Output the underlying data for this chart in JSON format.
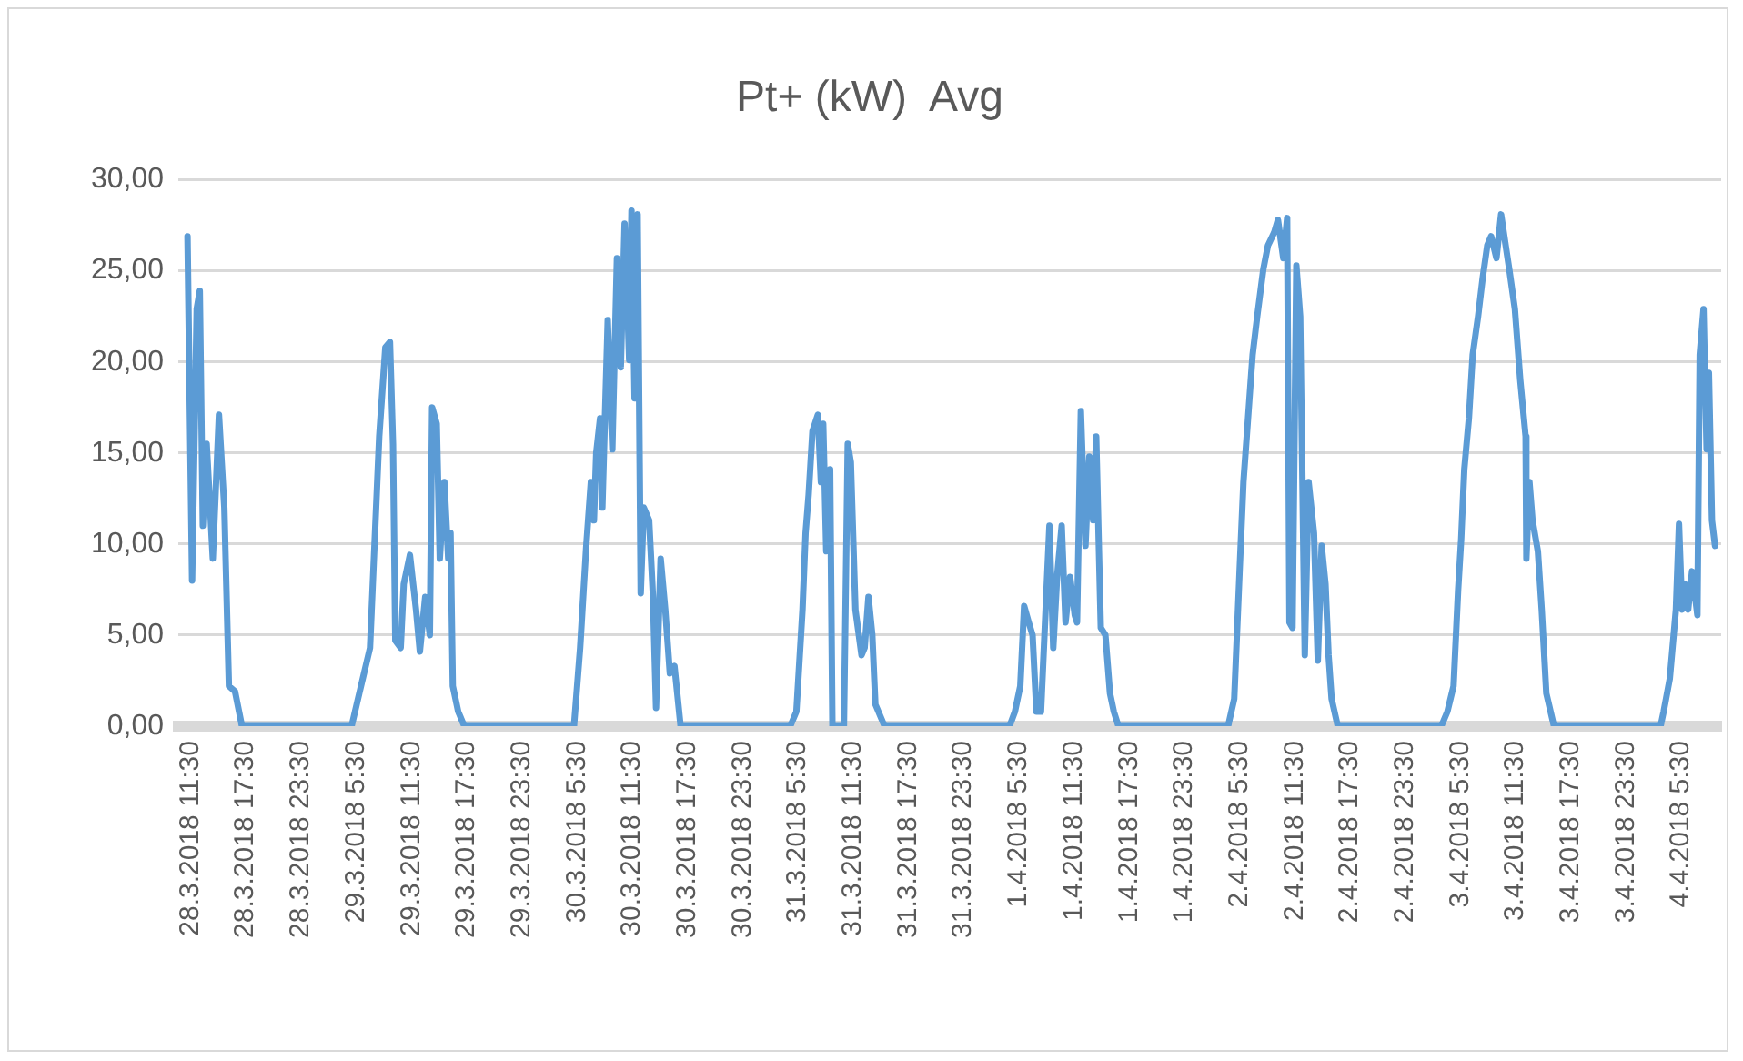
{
  "chart_data": {
    "type": "line",
    "title": "Pt+ (kW)  Avg",
    "xlim": [
      "2018-03-28T10:10",
      "2018-04-04T09:50"
    ],
    "xticks": [
      {
        "value": "2018-03-28T11:30",
        "label": "28.3.2018 11:30"
      },
      {
        "value": "2018-03-28T17:30",
        "label": "28.3.2018 17:30"
      },
      {
        "value": "2018-03-28T23:30",
        "label": "28.3.2018 23:30"
      },
      {
        "value": "2018-03-29T05:30",
        "label": "29.3.2018 5:30"
      },
      {
        "value": "2018-03-29T11:30",
        "label": "29.3.2018 11:30"
      },
      {
        "value": "2018-03-29T17:30",
        "label": "29.3.2018 17:30"
      },
      {
        "value": "2018-03-29T23:30",
        "label": "29.3.2018 23:30"
      },
      {
        "value": "2018-03-30T05:30",
        "label": "30.3.2018 5:30"
      },
      {
        "value": "2018-03-30T11:30",
        "label": "30.3.2018 11:30"
      },
      {
        "value": "2018-03-30T17:30",
        "label": "30.3.2018 17:30"
      },
      {
        "value": "2018-03-30T23:30",
        "label": "30.3.2018 23:30"
      },
      {
        "value": "2018-03-31T05:30",
        "label": "31.3.2018 5:30"
      },
      {
        "value": "2018-03-31T11:30",
        "label": "31.3.2018 11:30"
      },
      {
        "value": "2018-03-31T17:30",
        "label": "31.3.2018 17:30"
      },
      {
        "value": "2018-03-31T23:30",
        "label": "31.3.2018 23:30"
      },
      {
        "value": "2018-04-01T05:30",
        "label": "1.4.2018 5:30"
      },
      {
        "value": "2018-04-01T11:30",
        "label": "1.4.2018 11:30"
      },
      {
        "value": "2018-04-01T17:30",
        "label": "1.4.2018 17:30"
      },
      {
        "value": "2018-04-01T23:30",
        "label": "1.4.2018 23:30"
      },
      {
        "value": "2018-04-02T05:30",
        "label": "2.4.2018 5:30"
      },
      {
        "value": "2018-04-02T11:30",
        "label": "2.4.2018 11:30"
      },
      {
        "value": "2018-04-02T17:30",
        "label": "2.4.2018 17:30"
      },
      {
        "value": "2018-04-02T23:30",
        "label": "2.4.2018 23:30"
      },
      {
        "value": "2018-04-03T05:30",
        "label": "3.4.2018 5:30"
      },
      {
        "value": "2018-04-03T11:30",
        "label": "3.4.2018 11:30"
      },
      {
        "value": "2018-04-03T17:30",
        "label": "3.4.2018 17:30"
      },
      {
        "value": "2018-04-03T23:30",
        "label": "3.4.2018 23:30"
      },
      {
        "value": "2018-04-04T05:30",
        "label": "4.4.2018 5:30"
      }
    ],
    "ylim": [
      0,
      30
    ],
    "yticks": [
      {
        "value": 0,
        "label": "0,00"
      },
      {
        "value": 5,
        "label": "5,00"
      },
      {
        "value": 10,
        "label": "10,00"
      },
      {
        "value": 15,
        "label": "15,00"
      },
      {
        "value": 20,
        "label": "20,00"
      },
      {
        "value": 25,
        "label": "25,00"
      },
      {
        "value": 30,
        "label": "30,00"
      }
    ],
    "grid": "y",
    "legend": false,
    "series": [
      {
        "color": "#5b9bd5",
        "x": [
          "2018-03-28T11:10",
          "2018-03-28T11:40",
          "2018-03-28T12:10",
          "2018-03-28T12:30",
          "2018-03-28T12:50",
          "2018-03-28T13:15",
          "2018-03-28T13:55",
          "2018-03-28T14:35",
          "2018-03-28T15:10",
          "2018-03-28T15:40",
          "2018-03-28T16:20",
          "2018-03-28T17:05",
          "2018-03-29T05:00",
          "2018-03-29T05:50",
          "2018-03-29T07:00",
          "2018-03-29T08:00",
          "2018-03-29T08:40",
          "2018-03-29T09:10",
          "2018-03-29T09:30",
          "2018-03-29T09:45",
          "2018-03-29T10:20",
          "2018-03-29T10:40",
          "2018-03-29T11:20",
          "2018-03-29T12:00",
          "2018-03-29T12:25",
          "2018-03-29T13:00",
          "2018-03-29T13:30",
          "2018-03-29T13:45",
          "2018-03-29T14:15",
          "2018-03-29T14:35",
          "2018-03-29T15:05",
          "2018-03-29T15:30",
          "2018-03-29T15:45",
          "2018-03-29T16:00",
          "2018-03-29T16:35",
          "2018-03-29T17:15",
          "2018-03-30T05:10",
          "2018-03-30T05:50",
          "2018-03-30T06:30",
          "2018-03-30T07:00",
          "2018-03-30T07:20",
          "2018-03-30T07:35",
          "2018-03-30T08:00",
          "2018-03-30T08:15",
          "2018-03-30T08:50",
          "2018-03-30T09:20",
          "2018-03-30T09:50",
          "2018-03-30T10:15",
          "2018-03-30T10:40",
          "2018-03-30T11:10",
          "2018-03-30T11:25",
          "2018-03-30T11:45",
          "2018-03-30T12:05",
          "2018-03-30T12:25",
          "2018-03-30T12:45",
          "2018-03-30T13:20",
          "2018-03-30T13:45",
          "2018-03-30T14:05",
          "2018-03-30T14:35",
          "2018-03-30T15:05",
          "2018-03-30T15:35",
          "2018-03-30T16:05",
          "2018-03-30T16:45",
          "2018-03-31T04:40",
          "2018-03-31T05:20",
          "2018-03-31T06:00",
          "2018-03-31T06:20",
          "2018-03-31T06:40",
          "2018-03-31T07:05",
          "2018-03-31T07:40",
          "2018-03-31T08:00",
          "2018-03-31T08:15",
          "2018-03-31T08:35",
          "2018-03-31T09:00",
          "2018-03-31T09:15",
          "2018-03-31T10:30",
          "2018-03-31T10:55",
          "2018-03-31T11:15",
          "2018-03-31T11:45",
          "2018-03-31T12:25",
          "2018-03-31T12:45",
          "2018-03-31T13:10",
          "2018-03-31T13:35",
          "2018-03-31T13:55",
          "2018-03-31T14:55",
          "2018-04-01T04:30",
          "2018-04-01T05:05",
          "2018-04-01T05:40",
          "2018-04-01T06:05",
          "2018-04-01T06:35",
          "2018-04-01T07:00",
          "2018-04-01T07:25",
          "2018-04-01T07:55",
          "2018-04-01T08:25",
          "2018-04-01T08:50",
          "2018-04-01T09:15",
          "2018-04-01T09:40",
          "2018-04-01T10:10",
          "2018-04-01T10:35",
          "2018-04-01T11:05",
          "2018-04-01T11:35",
          "2018-04-01T11:50",
          "2018-04-01T12:15",
          "2018-04-01T12:45",
          "2018-04-01T13:10",
          "2018-04-01T13:35",
          "2018-04-01T13:55",
          "2018-04-01T14:25",
          "2018-04-01T14:55",
          "2018-04-01T15:25",
          "2018-04-01T15:50",
          "2018-04-01T16:20",
          "2018-04-02T04:15",
          "2018-04-02T04:55",
          "2018-04-02T05:30",
          "2018-04-02T05:55",
          "2018-04-02T06:25",
          "2018-04-02T06:55",
          "2018-04-02T07:25",
          "2018-04-02T08:05",
          "2018-04-02T08:35",
          "2018-04-02T09:15",
          "2018-04-02T09:40",
          "2018-04-02T10:15",
          "2018-04-02T10:40",
          "2018-04-02T10:55",
          "2018-04-02T11:15",
          "2018-04-02T11:40",
          "2018-04-02T12:05",
          "2018-04-02T12:35",
          "2018-04-02T13:00",
          "2018-04-02T13:35",
          "2018-04-02T14:00",
          "2018-04-02T14:25",
          "2018-04-02T14:50",
          "2018-04-02T15:10",
          "2018-04-02T15:30",
          "2018-04-02T16:10",
          "2018-04-03T03:25",
          "2018-04-03T04:05",
          "2018-04-03T04:45",
          "2018-04-03T05:15",
          "2018-04-03T05:35",
          "2018-04-03T05:55",
          "2018-04-03T06:25",
          "2018-04-03T06:50",
          "2018-04-03T07:25",
          "2018-04-03T07:55",
          "2018-04-03T08:25",
          "2018-04-03T08:50",
          "2018-04-03T09:25",
          "2018-04-03T09:55",
          "2018-04-03T10:25",
          "2018-04-03T10:50",
          "2018-04-03T11:25",
          "2018-04-03T12:00",
          "2018-04-03T12:35",
          "2018-04-03T12:40",
          "2018-04-03T13:00",
          "2018-04-03T13:20",
          "2018-04-03T13:55",
          "2018-04-03T14:20",
          "2018-04-03T14:50",
          "2018-04-03T15:40",
          "2018-04-04T03:15",
          "2018-04-04T03:35",
          "2018-04-04T04:15",
          "2018-04-04T04:55",
          "2018-04-04T05:15",
          "2018-04-04T05:35",
          "2018-04-04T05:55",
          "2018-04-04T06:15",
          "2018-04-04T06:40",
          "2018-04-04T07:15",
          "2018-04-04T07:30",
          "2018-04-04T07:55",
          "2018-04-04T08:15",
          "2018-04-04T08:30",
          "2018-04-04T08:50",
          "2018-04-04T09:10"
        ],
        "values": [
          26.9,
          8.0,
          22.9,
          23.9,
          11.0,
          15.5,
          9.2,
          17.1,
          12.0,
          2.2,
          1.9,
          0,
          0,
          1.8,
          4.3,
          15.9,
          20.8,
          21.1,
          15.5,
          4.7,
          4.3,
          7.8,
          9.4,
          6.4,
          4.1,
          7.1,
          5.0,
          17.5,
          16.6,
          9.2,
          13.4,
          9.2,
          10.6,
          2.2,
          0.8,
          0,
          0,
          4.3,
          9.9,
          13.4,
          11.3,
          15.0,
          16.9,
          12.0,
          22.3,
          15.2,
          25.7,
          19.7,
          27.6,
          20.1,
          28.3,
          18.0,
          28.1,
          7.3,
          12.0,
          11.3,
          7.1,
          1.0,
          9.2,
          6.4,
          2.9,
          3.3,
          0,
          0,
          0.8,
          6.4,
          10.6,
          12.7,
          16.2,
          17.1,
          13.4,
          16.6,
          9.6,
          14.1,
          0,
          0,
          15.5,
          14.5,
          6.4,
          3.9,
          4.3,
          7.1,
          5.0,
          1.2,
          0,
          0,
          0.8,
          2.2,
          6.6,
          5.7,
          5.0,
          0.8,
          0.8,
          6.4,
          11.0,
          4.3,
          8.2,
          11.0,
          5.7,
          8.2,
          6.1,
          5.7,
          17.3,
          9.9,
          14.8,
          11.3,
          15.9,
          5.4,
          5.0,
          1.8,
          0.8,
          0,
          0,
          1.5,
          8.5,
          13.4,
          16.9,
          20.4,
          22.5,
          25.1,
          26.4,
          27.1,
          27.8,
          25.7,
          27.9,
          5.7,
          5.4,
          25.3,
          22.5,
          3.9,
          13.4,
          10.6,
          3.6,
          9.9,
          7.8,
          3.9,
          1.5,
          0,
          0,
          0.8,
          2.2,
          7.5,
          10.3,
          14.1,
          16.9,
          20.4,
          22.5,
          24.6,
          26.4,
          26.9,
          25.7,
          28.1,
          26.4,
          25.0,
          22.9,
          19.0,
          15.9,
          9.2,
          13.4,
          11.3,
          9.6,
          6.4,
          1.8,
          0,
          0,
          0.8,
          2.6,
          6.4,
          11.1,
          6.4,
          7.8,
          6.4,
          8.5,
          6.1,
          20.4,
          22.9,
          15.2,
          19.4,
          11.3,
          9.9
        ]
      }
    ]
  }
}
